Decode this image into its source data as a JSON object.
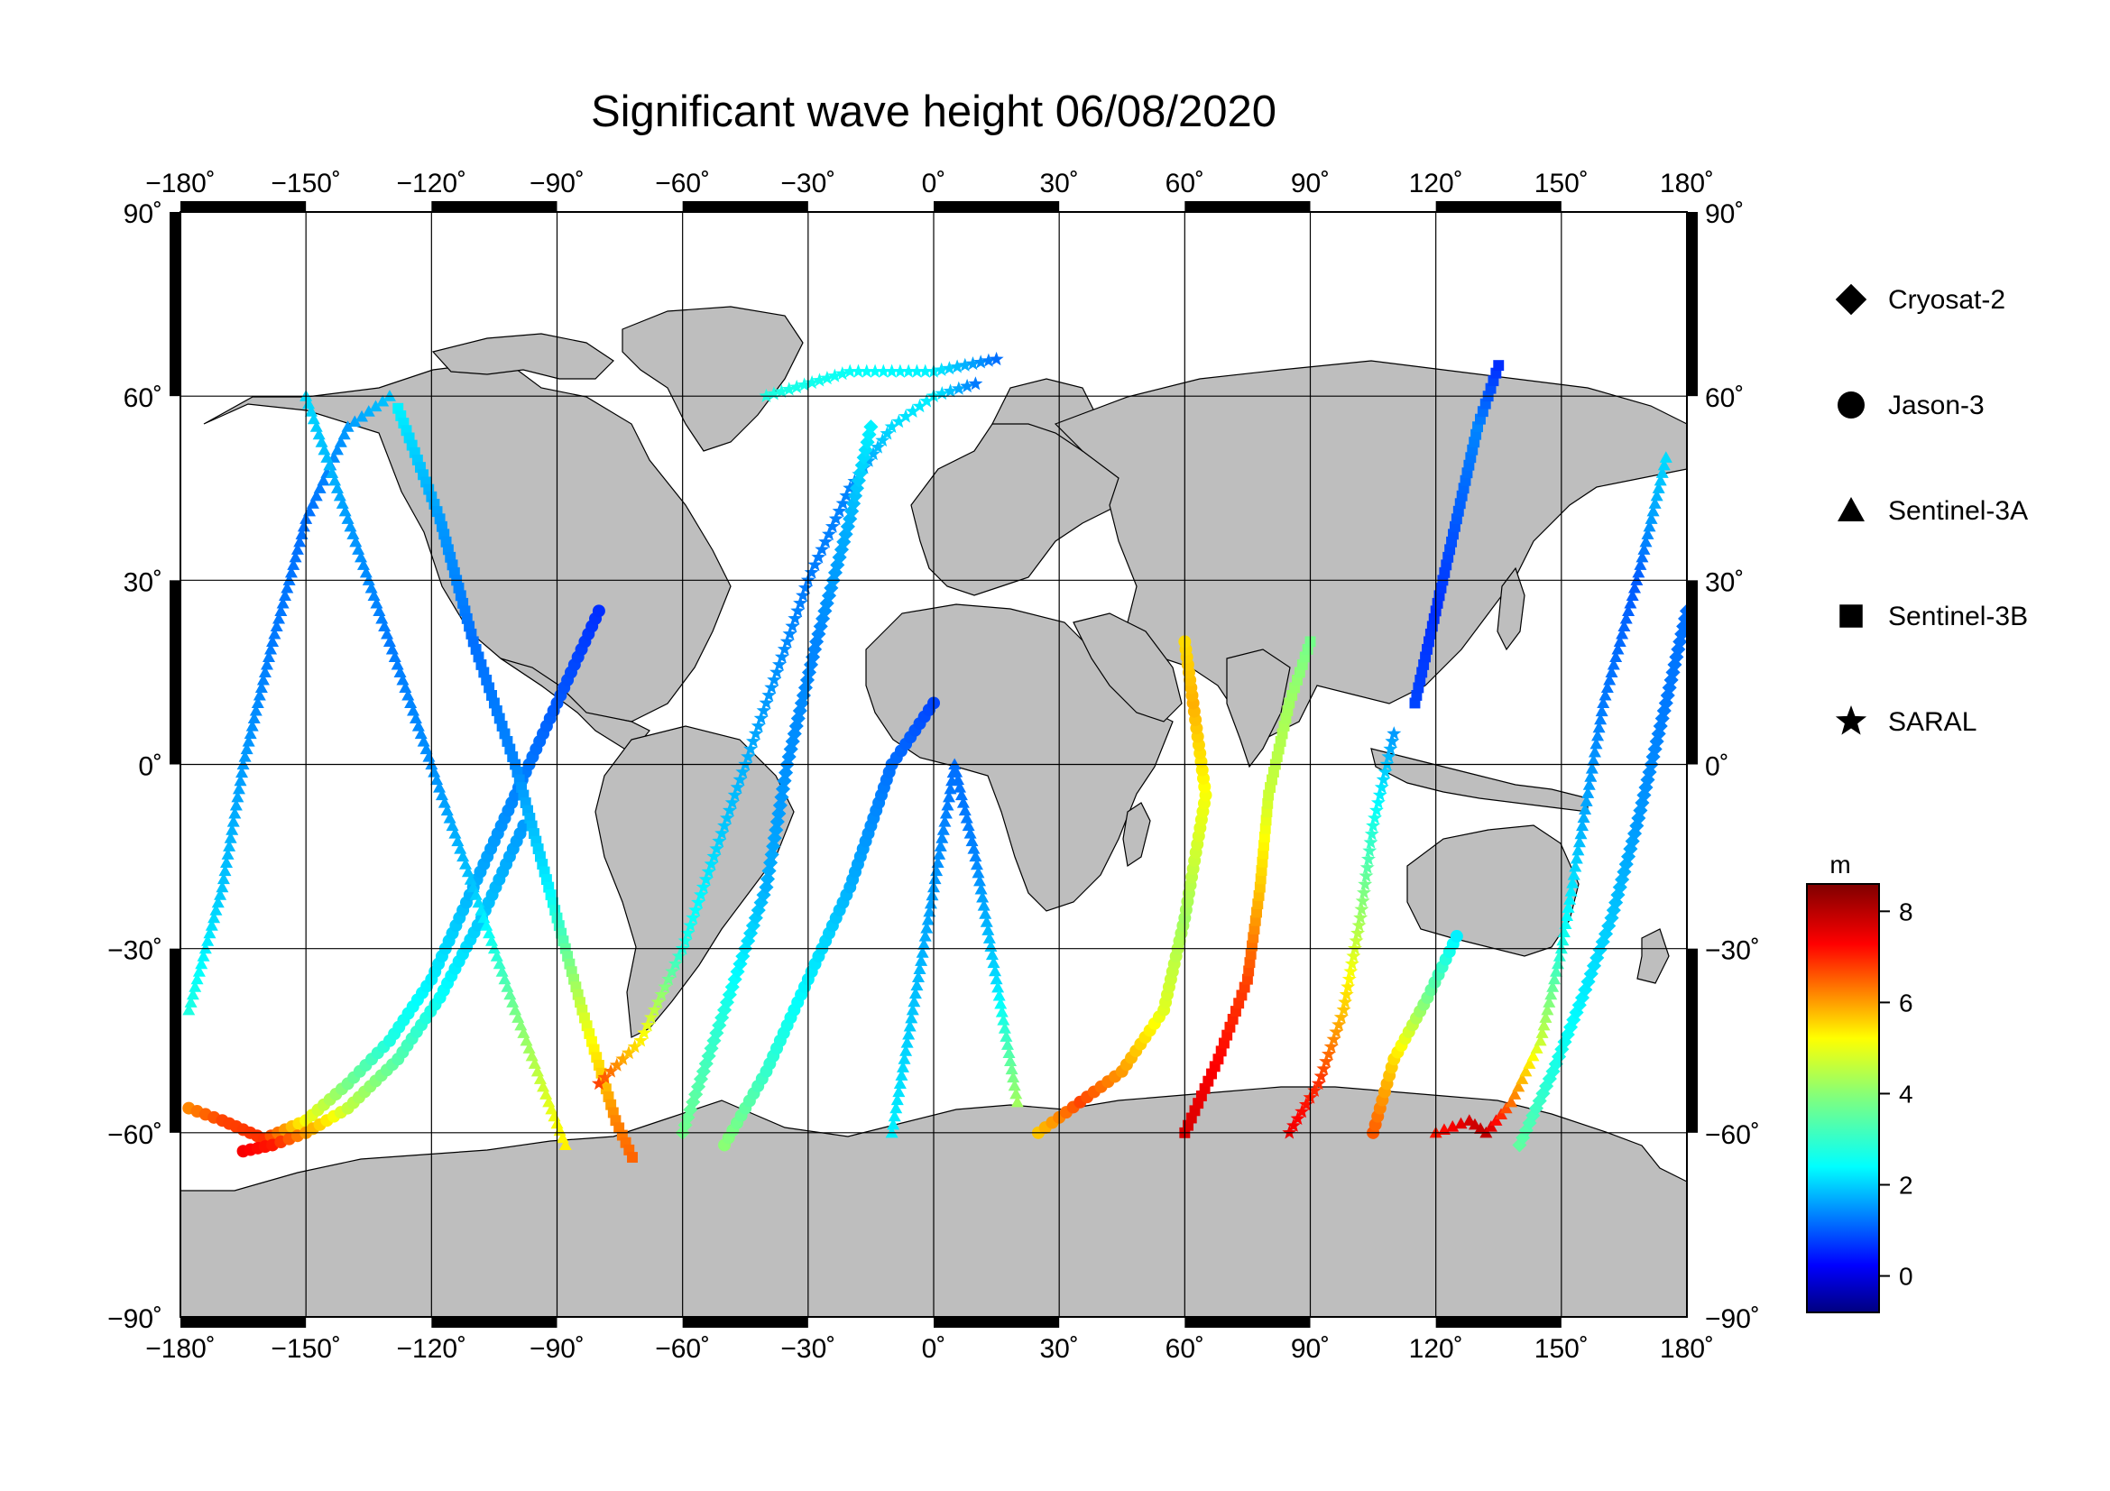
{
  "title": "Significant wave height 06/08/2020",
  "map": {
    "projection": "equirectangular",
    "lon_range": [
      -180,
      180
    ],
    "lat_range": [
      -90,
      90
    ],
    "lon_ticks": [
      "−180˚",
      "−150˚",
      "−120˚",
      "−90˚",
      "−60˚",
      "−30˚",
      "0˚",
      "30˚",
      "60˚",
      "90˚",
      "120˚",
      "150˚",
      "180˚"
    ],
    "lat_ticks": [
      "90˚",
      "60˚",
      "30˚",
      "0˚",
      "−30˚",
      "−60˚",
      "−90˚"
    ],
    "lon_tick_values": [
      -180,
      -150,
      -120,
      -90,
      -60,
      -30,
      0,
      30,
      60,
      90,
      120,
      150,
      180
    ],
    "lat_tick_values": [
      90,
      60,
      30,
      0,
      -30,
      -60,
      -90
    ],
    "grid": true,
    "land_color": "#bebebe",
    "ocean_color": "#ffffff"
  },
  "legend": {
    "placement": "right",
    "items": [
      {
        "label": "Cryosat-2",
        "symbol": "diamond"
      },
      {
        "label": "Jason-3",
        "symbol": "circle"
      },
      {
        "label": "Sentinel-3A",
        "symbol": "triangle"
      },
      {
        "label": "Sentinel-3B",
        "symbol": "square"
      },
      {
        "label": "SARAL",
        "symbol": "star"
      }
    ]
  },
  "colorbar": {
    "unit": "m",
    "range": [
      -0.8,
      8.6
    ],
    "tick_labels": [
      "0",
      "2",
      "4",
      "6",
      "8"
    ],
    "tick_values": [
      0,
      2,
      4,
      6,
      8
    ],
    "colormap": "jet"
  },
  "chart_data": {
    "type": "scatter",
    "title": "Significant wave height 06/08/2020",
    "xlabel": "",
    "ylabel": "",
    "xlim": [
      -180,
      180
    ],
    "ylim": [
      -90,
      90
    ],
    "color_unit": "m",
    "tracks": [
      {
        "satellite": "Jason-3",
        "points": [
          [
            -178,
            -56,
            6.2
          ],
          [
            -170,
            -58,
            6.8
          ],
          [
            -160,
            -61,
            7.0
          ],
          [
            -150,
            -58,
            5.0
          ],
          [
            -140,
            -52,
            3.8
          ],
          [
            -130,
            -45,
            3.0
          ],
          [
            -120,
            -35,
            2.6
          ],
          [
            -110,
            -20,
            2.0
          ],
          [
            -100,
            -5,
            1.6
          ],
          [
            -90,
            10,
            1.2
          ],
          [
            -80,
            25,
            0.8
          ]
        ]
      },
      {
        "satellite": "Jason-3",
        "points": [
          [
            -165,
            -63,
            7.5
          ],
          [
            -158,
            -62,
            7.2
          ],
          [
            -150,
            -60,
            6.0
          ],
          [
            -140,
            -56,
            4.5
          ],
          [
            -128,
            -48,
            3.5
          ],
          [
            -118,
            -38,
            2.8
          ],
          [
            -108,
            -25,
            2.2
          ],
          [
            -98,
            -10,
            1.8
          ]
        ]
      },
      {
        "satellite": "Sentinel-3A",
        "points": [
          [
            -178,
            -40,
            3.0
          ],
          [
            -170,
            -20,
            2.2
          ],
          [
            -165,
            0,
            1.8
          ],
          [
            -158,
            20,
            1.5
          ],
          [
            -150,
            40,
            1.4
          ],
          [
            -140,
            55,
            1.8
          ],
          [
            -130,
            60,
            2.2
          ]
        ]
      },
      {
        "satellite": "Sentinel-3A",
        "points": [
          [
            -150,
            60,
            2.4
          ],
          [
            -140,
            40,
            1.8
          ],
          [
            -130,
            20,
            1.5
          ],
          [
            -120,
            0,
            1.7
          ],
          [
            -110,
            -20,
            2.2
          ],
          [
            -100,
            -40,
            3.8
          ],
          [
            -92,
            -55,
            4.8
          ],
          [
            -88,
            -62,
            5.2
          ]
        ]
      },
      {
        "satellite": "Sentinel-3B",
        "points": [
          [
            -128,
            58,
            2.6
          ],
          [
            -118,
            40,
            1.8
          ],
          [
            -110,
            20,
            1.4
          ],
          [
            -100,
            0,
            1.6
          ],
          [
            -92,
            -20,
            2.6
          ],
          [
            -84,
            -40,
            4.6
          ],
          [
            -76,
            -58,
            6.2
          ],
          [
            -72,
            -64,
            6.5
          ]
        ]
      },
      {
        "satellite": "SARAL",
        "points": [
          [
            -80,
            -52,
            6.8
          ],
          [
            -70,
            -45,
            5.2
          ],
          [
            -60,
            -30,
            3.0
          ],
          [
            -50,
            -10,
            2.2
          ],
          [
            -40,
            10,
            1.8
          ],
          [
            -30,
            30,
            1.5
          ],
          [
            -20,
            45,
            1.6
          ],
          [
            -10,
            55,
            2.4
          ],
          [
            0,
            60,
            2.6
          ],
          [
            10,
            62,
            1.5
          ]
        ]
      },
      {
        "satellite": "Cryosat-2",
        "points": [
          [
            -60,
            -60,
            3.8
          ],
          [
            -50,
            -40,
            3.0
          ],
          [
            -40,
            -20,
            2.0
          ],
          [
            -35,
            0,
            1.7
          ],
          [
            -28,
            20,
            1.6
          ],
          [
            -20,
            40,
            2.0
          ],
          [
            -15,
            55,
            2.6
          ]
        ]
      },
      {
        "satellite": "Jason-3",
        "points": [
          [
            -50,
            -62,
            4.0
          ],
          [
            -40,
            -50,
            3.2
          ],
          [
            -30,
            -35,
            2.6
          ],
          [
            -20,
            -20,
            2.0
          ],
          [
            -10,
            0,
            1.4
          ],
          [
            0,
            10,
            1.0
          ]
        ]
      },
      {
        "satellite": "Sentinel-3A",
        "points": [
          [
            -10,
            -60,
            2.6
          ],
          [
            -5,
            -40,
            2.2
          ],
          [
            0,
            -20,
            1.8
          ],
          [
            5,
            0,
            1.4
          ],
          [
            10,
            -15,
            1.6
          ],
          [
            15,
            -35,
            2.4
          ],
          [
            20,
            -55,
            4.2
          ]
        ]
      },
      {
        "satellite": "Jason-3",
        "points": [
          [
            25,
            -60,
            5.6
          ],
          [
            35,
            -55,
            6.8
          ],
          [
            45,
            -50,
            6.0
          ],
          [
            55,
            -40,
            4.8
          ],
          [
            60,
            -25,
            4.2
          ],
          [
            65,
            -5,
            5.0
          ],
          [
            62,
            10,
            5.8
          ],
          [
            60,
            20,
            5.4
          ]
        ]
      },
      {
        "satellite": "Sentinel-3B",
        "points": [
          [
            60,
            -60,
            7.8
          ],
          [
            68,
            -48,
            7.4
          ],
          [
            75,
            -35,
            6.8
          ],
          [
            78,
            -20,
            5.6
          ],
          [
            80,
            -5,
            4.6
          ],
          [
            85,
            10,
            4.2
          ],
          [
            90,
            20,
            3.8
          ]
        ]
      },
      {
        "satellite": "SARAL",
        "points": [
          [
            85,
            -60,
            7.6
          ],
          [
            92,
            -52,
            7.0
          ],
          [
            98,
            -40,
            5.6
          ],
          [
            102,
            -25,
            4.2
          ],
          [
            105,
            -10,
            3.0
          ],
          [
            110,
            5,
            1.8
          ]
        ]
      },
      {
        "satellite": "Sentinel-3A",
        "points": [
          [
            120,
            -60,
            7.2
          ],
          [
            128,
            -58,
            7.8
          ],
          [
            132,
            -60,
            8.0
          ],
          [
            138,
            -55,
            6.4
          ],
          [
            145,
            -45,
            4.6
          ],
          [
            150,
            -30,
            3.0
          ],
          [
            155,
            -10,
            2.0
          ],
          [
            160,
            10,
            1.5
          ],
          [
            168,
            30,
            1.2
          ],
          [
            175,
            50,
            2.4
          ]
        ]
      },
      {
        "satellite": "Jason-3",
        "points": [
          [
            105,
            -60,
            6.6
          ],
          [
            110,
            -48,
            5.4
          ],
          [
            118,
            -38,
            3.8
          ],
          [
            125,
            -28,
            2.6
          ]
        ]
      },
      {
        "satellite": "Cryosat-2",
        "points": [
          [
            140,
            -62,
            3.6
          ],
          [
            148,
            -50,
            3.0
          ],
          [
            155,
            -38,
            2.6
          ],
          [
            162,
            -25,
            2.2
          ],
          [
            168,
            -10,
            1.8
          ],
          [
            175,
            10,
            1.5
          ],
          [
            180,
            25,
            1.4
          ]
        ]
      },
      {
        "satellite": "Sentinel-3B",
        "points": [
          [
            115,
            10,
            1.0
          ],
          [
            120,
            25,
            0.8
          ],
          [
            125,
            40,
            1.2
          ],
          [
            130,
            55,
            1.6
          ],
          [
            135,
            65,
            0.8
          ]
        ]
      },
      {
        "satellite": "SARAL",
        "points": [
          [
            -40,
            60,
            3.0
          ],
          [
            -20,
            64,
            2.8
          ],
          [
            0,
            64,
            2.6
          ],
          [
            15,
            66,
            1.4
          ]
        ]
      }
    ]
  }
}
